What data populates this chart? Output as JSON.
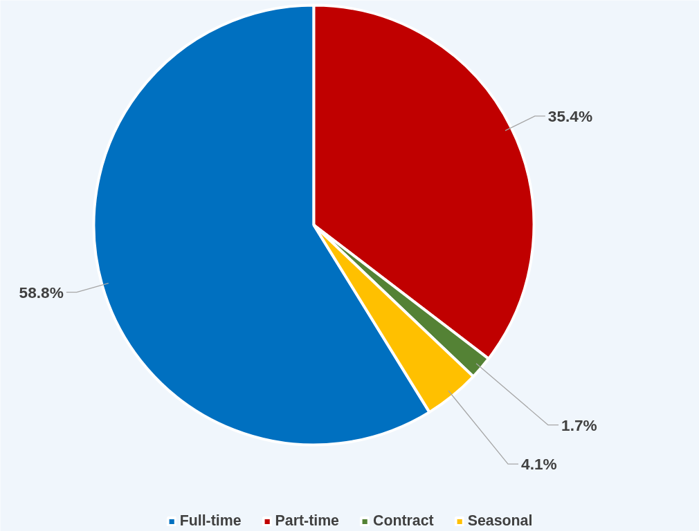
{
  "chart_data": {
    "type": "pie",
    "categories": [
      "Full-time",
      "Part-time",
      "Contract",
      "Seasonal"
    ],
    "values": [
      58.8,
      35.4,
      1.7,
      4.1
    ],
    "colors": [
      "#0070c0",
      "#c00000",
      "#548235",
      "#ffc000"
    ],
    "value_labels": [
      "58.8%",
      "35.4%",
      "1.7%",
      "4.1%"
    ],
    "legend": "bottom"
  }
}
